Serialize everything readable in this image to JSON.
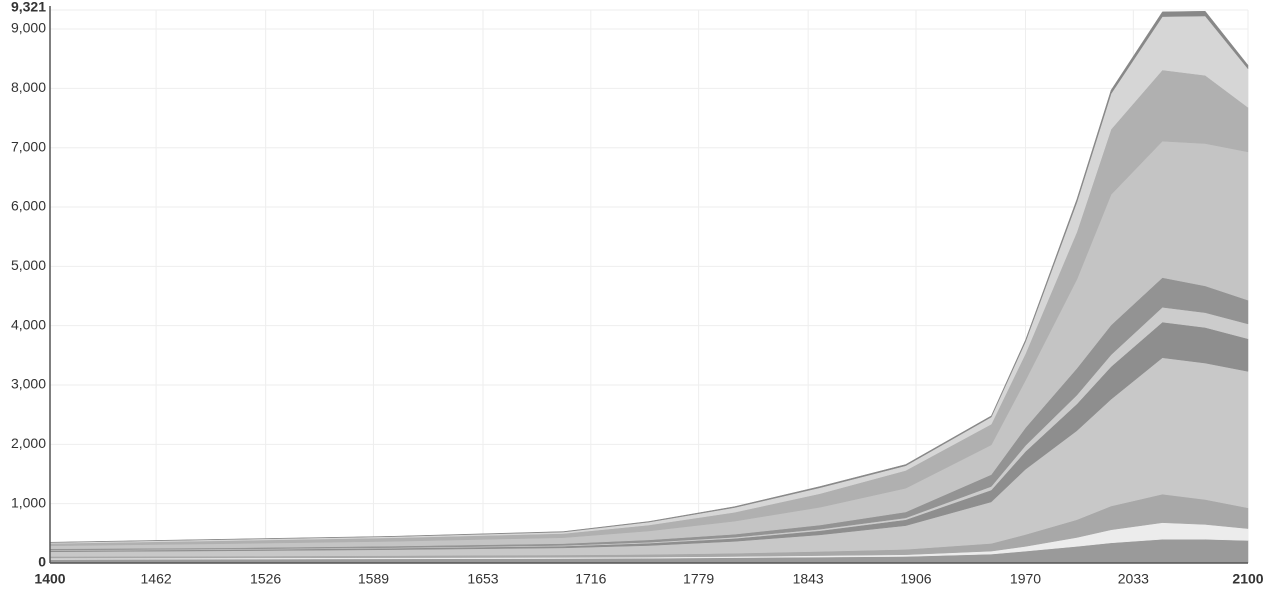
{
  "chart_data": {
    "type": "stacked_area",
    "x": [
      1400,
      1500,
      1600,
      1700,
      1750,
      1800,
      1850,
      1900,
      1950,
      1970,
      2000,
      2020,
      2050,
      2075,
      2100
    ],
    "xlim": [
      1400,
      2100
    ],
    "xticks": [
      1400,
      1462,
      1526,
      1589,
      1653,
      1716,
      1779,
      1843,
      1906,
      1970,
      2033,
      2100
    ],
    "ylim": [
      0,
      9321
    ],
    "yticks": [
      0,
      {
        "value": 1000,
        "label": "1,000"
      },
      {
        "value": 2000,
        "label": "2,000"
      },
      {
        "value": 3000,
        "label": "3,000"
      },
      {
        "value": 4000,
        "label": "4,000"
      },
      {
        "value": 5000,
        "label": "5,000"
      },
      {
        "value": 6000,
        "label": "6,000"
      },
      {
        "value": 7000,
        "label": "7,000"
      },
      {
        "value": 8000,
        "label": "8,000"
      },
      {
        "value": 9000,
        "label": "9,000"
      },
      {
        "value": 9321,
        "label": "9,321"
      }
    ],
    "grid": true,
    "series": [
      {
        "color": "#9a9a9a",
        "values": [
          60,
          65,
          70,
          75,
          80,
          90,
          100,
          110,
          150,
          200,
          280,
          340,
          400,
          400,
          380
        ]
      },
      {
        "color": "#ececec",
        "values": [
          20,
          20,
          20,
          20,
          20,
          20,
          25,
          30,
          50,
          80,
          150,
          220,
          280,
          250,
          200
        ]
      },
      {
        "color": "#a8a8a8",
        "values": [
          30,
          30,
          35,
          40,
          45,
          55,
          70,
          90,
          130,
          200,
          300,
          400,
          480,
          420,
          350
        ]
      },
      {
        "color": "#c8c8c8",
        "values": [
          80,
          90,
          100,
          120,
          150,
          200,
          280,
          400,
          700,
          1100,
          1500,
          1800,
          2300,
          2300,
          2300
        ]
      },
      {
        "color": "#8e8e8e",
        "values": [
          20,
          20,
          25,
          30,
          40,
          50,
          70,
          100,
          200,
          300,
          450,
          550,
          600,
          600,
          550
        ]
      },
      {
        "color": "#cccccc",
        "values": [
          10,
          10,
          10,
          12,
          15,
          20,
          25,
          30,
          60,
          100,
          150,
          200,
          250,
          250,
          250
        ]
      },
      {
        "color": "#939393",
        "values": [
          20,
          20,
          25,
          30,
          40,
          50,
          70,
          100,
          200,
          300,
          450,
          500,
          500,
          450,
          400
        ]
      },
      {
        "color": "#c4c4c4",
        "values": [
          50,
          70,
          80,
          100,
          150,
          220,
          300,
          400,
          500,
          800,
          1500,
          2200,
          2300,
          2400,
          2500
        ]
      },
      {
        "color": "#b0b0b0",
        "values": [
          40,
          50,
          60,
          70,
          100,
          150,
          230,
          300,
          350,
          450,
          800,
          1100,
          1200,
          1150,
          750
        ]
      },
      {
        "color": "#d6d6d6",
        "values": [
          15,
          20,
          20,
          25,
          50,
          80,
          100,
          80,
          120,
          200,
          500,
          600,
          900,
          1000,
          650
        ]
      },
      {
        "color": "#888888",
        "values": [
          5,
          5,
          5,
          8,
          10,
          15,
          20,
          20,
          20,
          30,
          50,
          60,
          80,
          80,
          60
        ]
      }
    ]
  }
}
